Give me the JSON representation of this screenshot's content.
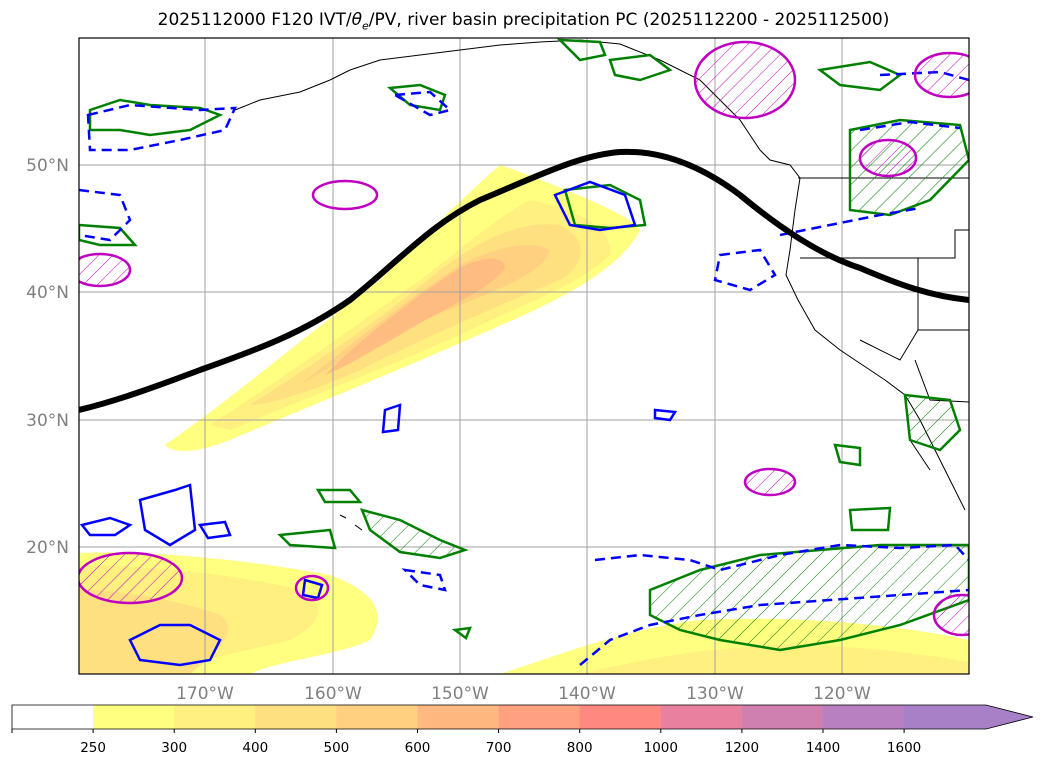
{
  "title": {
    "prefix": "2025112000 F120 IVT/",
    "theta": "θ",
    "theta_sub": "e",
    "suffix": "/PV, river basin precipitation PC (2025112200 - 2025112500)"
  },
  "map": {
    "projection": "PlateCarree",
    "lon_range": [
      -180,
      -110
    ],
    "lat_range": [
      10,
      60
    ],
    "gridlines": true,
    "lat_labels": [
      "50°N",
      "40°N",
      "30°N",
      "20°N"
    ],
    "lon_labels": [
      "170°W",
      "160°W",
      "150°W",
      "140°W",
      "130°W",
      "120°W"
    ]
  },
  "colorbar": {
    "ticks": [
      "250",
      "300",
      "400",
      "500",
      "600",
      "700",
      "800",
      "1000",
      "1200",
      "1400",
      "1600"
    ],
    "colors": [
      "#ffffff",
      "#ffff80",
      "#fff080",
      "#ffe080",
      "#ffd080",
      "#ffb880",
      "#ffa080",
      "#ff8880",
      "#e880a0",
      "#d080b0",
      "#b880c0",
      "#a880c8"
    ],
    "extend": "max"
  },
  "legend_colors": {
    "pv_contour": "#000000",
    "theta_e_positive": "#008000",
    "theta_e_negative": "#0000ff",
    "precip_pc": "#c000c0"
  }
}
